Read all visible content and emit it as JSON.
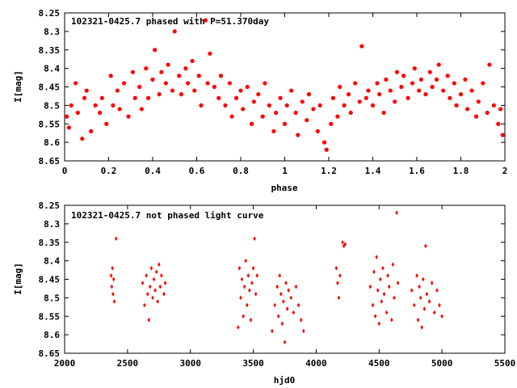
{
  "chart_data": [
    {
      "type": "scatter",
      "title": "102321-0425.7 phased with P=51.370day",
      "xlabel": "phase",
      "ylabel": "I[mag]",
      "xlim": [
        0,
        2
      ],
      "ylim": [
        8.65,
        8.25
      ],
      "y_inverted": true,
      "grid": false,
      "marker": "filled circle",
      "color": "#ff0000",
      "x_ticks": [
        "0",
        "0.2",
        "0.4",
        "0.6",
        "0.8",
        "1",
        "1.2",
        "1.4",
        "1.6",
        "1.8",
        "2"
      ],
      "y_ticks": [
        "8.25",
        "8.3",
        "8.35",
        "8.4",
        "8.45",
        "8.5",
        "8.55",
        "8.6",
        "8.65"
      ],
      "series": [
        {
          "points": [
            [
              0.01,
              8.53
            ],
            [
              0.02,
              8.56
            ],
            [
              0.03,
              8.5
            ],
            [
              0.05,
              8.44
            ],
            [
              0.06,
              8.52
            ],
            [
              0.08,
              8.59
            ],
            [
              0.09,
              8.48
            ],
            [
              0.1,
              8.46
            ],
            [
              0.12,
              8.57
            ],
            [
              0.14,
              8.5
            ],
            [
              0.16,
              8.52
            ],
            [
              0.17,
              8.48
            ],
            [
              0.19,
              8.55
            ],
            [
              0.21,
              8.42
            ],
            [
              0.22,
              8.5
            ],
            [
              0.24,
              8.46
            ],
            [
              0.25,
              8.51
            ],
            [
              0.27,
              8.44
            ],
            [
              0.29,
              8.53
            ],
            [
              0.31,
              8.41
            ],
            [
              0.32,
              8.48
            ],
            [
              0.34,
              8.45
            ],
            [
              0.35,
              8.51
            ],
            [
              0.37,
              8.4
            ],
            [
              0.38,
              8.48
            ],
            [
              0.4,
              8.43
            ],
            [
              0.41,
              8.35
            ],
            [
              0.43,
              8.47
            ],
            [
              0.44,
              8.41
            ],
            [
              0.46,
              8.44
            ],
            [
              0.47,
              8.39
            ],
            [
              0.49,
              8.46
            ],
            [
              0.5,
              8.3
            ],
            [
              0.52,
              8.42
            ],
            [
              0.53,
              8.47
            ],
            [
              0.55,
              8.4
            ],
            [
              0.56,
              8.44
            ],
            [
              0.58,
              8.38
            ],
            [
              0.59,
              8.46
            ],
            [
              0.61,
              8.42
            ],
            [
              0.62,
              8.5
            ],
            [
              0.64,
              8.27
            ],
            [
              0.65,
              8.44
            ],
            [
              0.66,
              8.36
            ],
            [
              0.68,
              8.45
            ],
            [
              0.7,
              8.48
            ],
            [
              0.71,
              8.42
            ],
            [
              0.73,
              8.5
            ],
            [
              0.75,
              8.44
            ],
            [
              0.76,
              8.53
            ],
            [
              0.78,
              8.48
            ],
            [
              0.8,
              8.46
            ],
            [
              0.81,
              8.51
            ],
            [
              0.83,
              8.45
            ],
            [
              0.85,
              8.55
            ],
            [
              0.86,
              8.49
            ],
            [
              0.88,
              8.47
            ],
            [
              0.9,
              8.53
            ],
            [
              0.91,
              8.44
            ],
            [
              0.93,
              8.5
            ],
            [
              0.95,
              8.57
            ],
            [
              0.96,
              8.52
            ],
            [
              0.98,
              8.48
            ],
            [
              1.0,
              8.55
            ],
            [
              1.01,
              8.5
            ],
            [
              1.03,
              8.46
            ],
            [
              1.05,
              8.52
            ],
            [
              1.06,
              8.58
            ],
            [
              1.08,
              8.49
            ],
            [
              1.1,
              8.54
            ],
            [
              1.11,
              8.47
            ],
            [
              1.13,
              8.51
            ],
            [
              1.15,
              8.57
            ],
            [
              1.16,
              8.5
            ],
            [
              1.18,
              8.6
            ],
            [
              1.19,
              8.62
            ],
            [
              1.21,
              8.55
            ],
            [
              1.22,
              8.48
            ],
            [
              1.24,
              8.53
            ],
            [
              1.25,
              8.45
            ],
            [
              1.27,
              8.5
            ],
            [
              1.29,
              8.47
            ],
            [
              1.3,
              8.52
            ],
            [
              1.32,
              8.44
            ],
            [
              1.34,
              8.49
            ],
            [
              1.35,
              8.34
            ],
            [
              1.37,
              8.48
            ],
            [
              1.38,
              8.46
            ],
            [
              1.4,
              8.5
            ],
            [
              1.42,
              8.44
            ],
            [
              1.43,
              8.47
            ],
            [
              1.45,
              8.52
            ],
            [
              1.46,
              8.43
            ],
            [
              1.48,
              8.46
            ],
            [
              1.5,
              8.49
            ],
            [
              1.51,
              8.41
            ],
            [
              1.53,
              8.45
            ],
            [
              1.54,
              8.42
            ],
            [
              1.56,
              8.48
            ],
            [
              1.58,
              8.44
            ],
            [
              1.59,
              8.4
            ],
            [
              1.61,
              8.46
            ],
            [
              1.62,
              8.43
            ],
            [
              1.64,
              8.47
            ],
            [
              1.66,
              8.41
            ],
            [
              1.67,
              8.45
            ],
            [
              1.69,
              8.43
            ],
            [
              1.7,
              8.39
            ],
            [
              1.72,
              8.46
            ],
            [
              1.74,
              8.42
            ],
            [
              1.75,
              8.48
            ],
            [
              1.77,
              8.44
            ],
            [
              1.78,
              8.5
            ],
            [
              1.8,
              8.47
            ],
            [
              1.82,
              8.43
            ],
            [
              1.83,
              8.51
            ],
            [
              1.85,
              8.46
            ],
            [
              1.87,
              8.53
            ],
            [
              1.88,
              8.49
            ],
            [
              1.9,
              8.44
            ],
            [
              1.92,
              8.52
            ],
            [
              1.93,
              8.39
            ],
            [
              1.95,
              8.5
            ],
            [
              1.97,
              8.55
            ],
            [
              1.98,
              8.51
            ],
            [
              1.99,
              8.58
            ]
          ]
        }
      ]
    },
    {
      "type": "scatter",
      "title": "102321-0425.7 not phased light curve",
      "xlabel": "hjd0",
      "ylabel": "I[mag]",
      "xlim": [
        2000,
        5500
      ],
      "ylim": [
        8.65,
        8.25
      ],
      "y_inverted": true,
      "grid": false,
      "marker": "small diamond",
      "color": "#ff0000",
      "x_ticks": [
        "2000",
        "2500",
        "3000",
        "3500",
        "4000",
        "4500",
        "5000",
        "5500"
      ],
      "y_ticks": [
        "8.25",
        "8.3",
        "8.35",
        "8.4",
        "8.45",
        "8.5",
        "8.55",
        "8.6",
        "8.65"
      ],
      "series": [
        {
          "points": [
            [
              2370,
              8.44
            ],
            [
              2375,
              8.47
            ],
            [
              2380,
              8.42
            ],
            [
              2385,
              8.49
            ],
            [
              2390,
              8.45
            ],
            [
              2395,
              8.51
            ],
            [
              2410,
              8.34
            ],
            [
              2620,
              8.46
            ],
            [
              2635,
              8.52
            ],
            [
              2650,
              8.44
            ],
            [
              2660,
              8.49
            ],
            [
              2670,
              8.56
            ],
            [
              2680,
              8.47
            ],
            [
              2690,
              8.42
            ],
            [
              2700,
              8.5
            ],
            [
              2710,
              8.45
            ],
            [
              2720,
              8.48
            ],
            [
              2730,
              8.43
            ],
            [
              2740,
              8.51
            ],
            [
              2750,
              8.41
            ],
            [
              2760,
              8.47
            ],
            [
              2770,
              8.44
            ],
            [
              2790,
              8.49
            ],
            [
              2800,
              8.46
            ],
            [
              3380,
              8.58
            ],
            [
              3390,
              8.42
            ],
            [
              3400,
              8.5
            ],
            [
              3410,
              8.45
            ],
            [
              3420,
              8.55
            ],
            [
              3430,
              8.47
            ],
            [
              3440,
              8.4
            ],
            [
              3450,
              8.52
            ],
            [
              3460,
              8.44
            ],
            [
              3470,
              8.48
            ],
            [
              3480,
              8.56
            ],
            [
              3490,
              8.46
            ],
            [
              3500,
              8.42
            ],
            [
              3510,
              8.34
            ],
            [
              3520,
              8.49
            ],
            [
              3530,
              8.44
            ],
            [
              3650,
              8.59
            ],
            [
              3670,
              8.52
            ],
            [
              3690,
              8.47
            ],
            [
              3700,
              8.55
            ],
            [
              3710,
              8.44
            ],
            [
              3720,
              8.49
            ],
            [
              3730,
              8.57
            ],
            [
              3740,
              8.51
            ],
            [
              3750,
              8.62
            ],
            [
              3760,
              8.46
            ],
            [
              3770,
              8.53
            ],
            [
              3780,
              8.48
            ],
            [
              3800,
              8.5
            ],
            [
              3820,
              8.54
            ],
            [
              3840,
              8.47
            ],
            [
              3860,
              8.52
            ],
            [
              3880,
              8.56
            ],
            [
              3900,
              8.59
            ],
            [
              4160,
              8.42
            ],
            [
              4170,
              8.46
            ],
            [
              4180,
              8.5
            ],
            [
              4190,
              8.44
            ],
            [
              4210,
              8.35
            ],
            [
              4220,
              8.36
            ],
            [
              4230,
              8.355
            ],
            [
              4430,
              8.47
            ],
            [
              4450,
              8.52
            ],
            [
              4460,
              8.43
            ],
            [
              4470,
              8.55
            ],
            [
              4480,
              8.39
            ],
            [
              4490,
              8.48
            ],
            [
              4500,
              8.57
            ],
            [
              4510,
              8.45
            ],
            [
              4520,
              8.51
            ],
            [
              4530,
              8.42
            ],
            [
              4540,
              8.49
            ],
            [
              4560,
              8.54
            ],
            [
              4570,
              8.44
            ],
            [
              4580,
              8.47
            ],
            [
              4600,
              8.56
            ],
            [
              4610,
              8.41
            ],
            [
              4620,
              8.5
            ],
            [
              4640,
              8.27
            ],
            [
              4650,
              8.46
            ],
            [
              4760,
              8.48
            ],
            [
              4780,
              8.52
            ],
            [
              4800,
              8.44
            ],
            [
              4810,
              8.56
            ],
            [
              4820,
              8.47
            ],
            [
              4830,
              8.5
            ],
            [
              4840,
              8.58
            ],
            [
              4850,
              8.45
            ],
            [
              4860,
              8.53
            ],
            [
              4870,
              8.36
            ],
            [
              4880,
              8.49
            ],
            [
              4900,
              8.51
            ],
            [
              4920,
              8.46
            ],
            [
              4940,
              8.54
            ],
            [
              4960,
              8.48
            ],
            [
              4980,
              8.52
            ],
            [
              5000,
              8.55
            ]
          ]
        }
      ]
    }
  ]
}
